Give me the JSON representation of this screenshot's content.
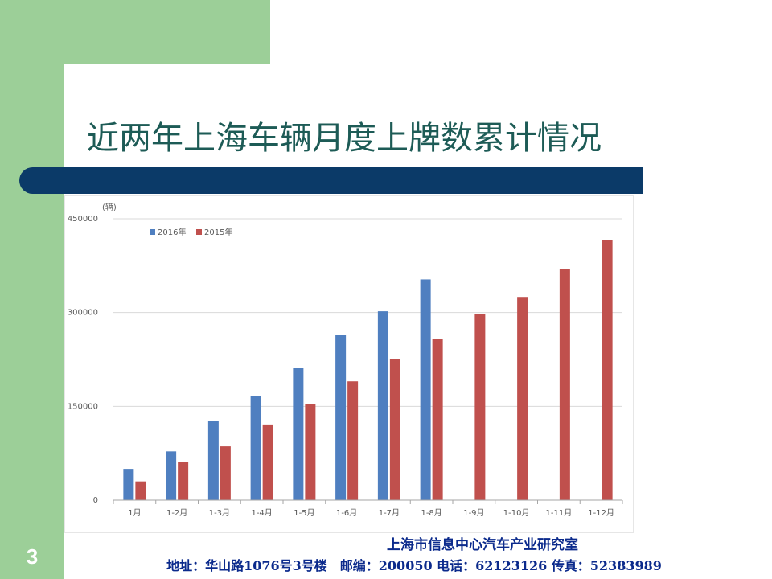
{
  "slide": {
    "title": "近两年上海车辆月度上牌数累计情况",
    "page_number": "3",
    "footer_line1": "上海市信息中心汽车产业研究室",
    "footer_line2": "地址：华山路1076号3号楼　邮编：200050 电话：62123126 传真：52383989"
  },
  "colors": {
    "green": "#9ccf98",
    "navy": "#0b3a68",
    "title": "#1d5b56",
    "series_2016": "#4f7fc0",
    "series_2015": "#c0504d",
    "footer": "#0b2a8c"
  },
  "chart_data": {
    "type": "bar",
    "ylabel": "(辆)",
    "ylim": [
      0,
      450000
    ],
    "yticks": [
      "0",
      "150000",
      "300000",
      "450000"
    ],
    "categories": [
      "1月",
      "1-2月",
      "1-3月",
      "1-4月",
      "1-5月",
      "1-6月",
      "1-7月",
      "1-8月",
      "1-9月",
      "1-10月",
      "1-11月",
      "1-12月"
    ],
    "series": [
      {
        "name": "2016年",
        "color": "#4f7fc0",
        "values": [
          50000,
          78000,
          126000,
          166000,
          211000,
          264000,
          302000,
          353000,
          null,
          null,
          null,
          null
        ]
      },
      {
        "name": "2015年",
        "color": "#c0504d",
        "values": [
          30000,
          61000,
          86000,
          121000,
          153000,
          190000,
          225000,
          258000,
          297000,
          325000,
          370000,
          416000
        ]
      }
    ],
    "legend_position": "top-left",
    "grid": true
  }
}
